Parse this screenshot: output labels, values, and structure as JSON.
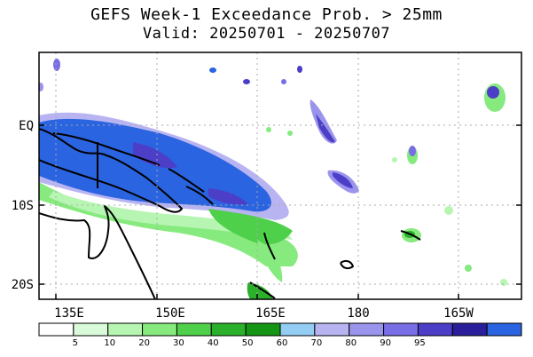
{
  "title": "GEFS Week-1 Exceedance Prob. > 25mm",
  "subtitle": "Valid: 20250701 - 20250707",
  "lat_labels": [
    "EQ",
    "10S",
    "20S"
  ],
  "lon_labels": [
    "135E",
    "150E",
    "165E",
    "180",
    "165W"
  ],
  "colorbar": {
    "colors": [
      "#ffffff",
      "#d9fbd9",
      "#b7f5b2",
      "#86ea7e",
      "#4fd04a",
      "#2bb02b",
      "#149614",
      "#94cdf4",
      "#b8b4f2",
      "#9b94ec",
      "#7a6ee6",
      "#4d3ec8",
      "#2a1e9a",
      "#2a64e0"
    ],
    "ticks": [
      "5",
      "10",
      "20",
      "30",
      "40",
      "50",
      "60",
      "70",
      "80",
      "90",
      "95"
    ]
  }
}
